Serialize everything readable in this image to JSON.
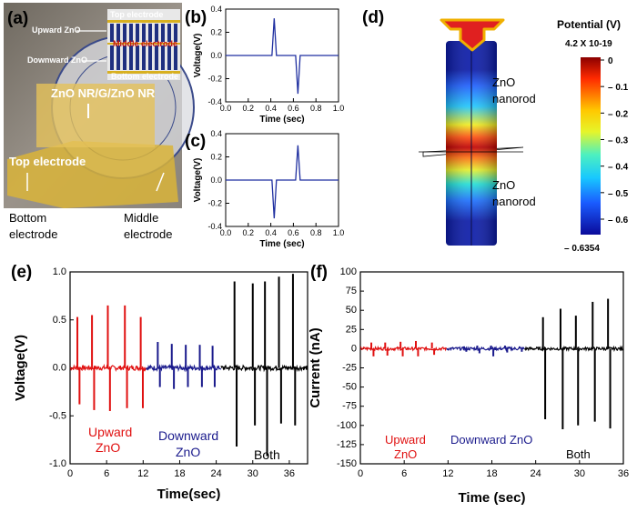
{
  "panels": {
    "a": {
      "label": "(a)",
      "photo_labels": {
        "top_electrode": "Top electrode",
        "upward_zno": "Upward ZnO",
        "middle_electrode": "Middle electrode",
        "downward_zno": "Downward ZnO",
        "bottom_electrode": "Bottom electrode",
        "device": "ZnO NR/G/ZnO NR",
        "top_electrode_tape": "Top electrode"
      },
      "captions": {
        "bottom_l1": "Bottom",
        "bottom_l2": "electrode",
        "middle_l1": "Middle",
        "middle_l2": "electrode"
      },
      "seal_text": "PUSAN NATIONAL UNIVERSITY"
    },
    "b": {
      "label": "(b)"
    },
    "c": {
      "label": "(c)"
    },
    "d": {
      "label": "(d)",
      "colorbar_title": "Potential (V)",
      "colorbar_top": "4.2 X 10-19",
      "colorbar_bottom": "– 0.6354",
      "colorbar_ticks": [
        "0",
        "– 0.1",
        "– 0.2",
        "– 0.3",
        "– 0.4",
        "– 0.5",
        "– 0.6"
      ],
      "rod_top_l1": "ZnO",
      "rod_top_l2": "nanorod",
      "rod_bot_l1": "ZnO",
      "rod_bot_l2": "nanorod"
    },
    "e": {
      "label": "(e)",
      "legend": {
        "upward_l1": "Upward",
        "upward_l2": "ZnO",
        "downward_l1": "Downward",
        "downward_l2": "ZnO",
        "both": "Both"
      }
    },
    "f": {
      "label": "(f)",
      "legend": {
        "upward_l1": "Upward",
        "upward_l2": "ZnO",
        "downward": "Downward ZnO",
        "both": "Both"
      }
    }
  },
  "colors": {
    "upward": "#e01010",
    "downward": "#1a1a8c",
    "both": "#000000",
    "trace": "#1f2fa0"
  },
  "chart_data": [
    {
      "id": "b",
      "type": "line",
      "xlabel": "Time (sec)",
      "ylabel": "Voltage(V)",
      "xlim": [
        0,
        1.0
      ],
      "ylim": [
        -0.4,
        0.4
      ],
      "xticks": [
        "0.0",
        "0.2",
        "0.4",
        "0.6",
        "0.8",
        "1.0"
      ],
      "yticks": [
        "-0.4",
        "-0.2",
        "0.0",
        "0.2",
        "0.4"
      ],
      "xtick_values": [
        0,
        0.2,
        0.4,
        0.6,
        0.8,
        1.0
      ],
      "ytick_values": [
        -0.4,
        -0.2,
        0,
        0.2,
        0.4
      ],
      "series": [
        {
          "name": "trace",
          "x": [
            0,
            0.41,
            0.43,
            0.45,
            0.62,
            0.64,
            0.66,
            1.0
          ],
          "y": [
            0.0,
            0.0,
            0.32,
            0.0,
            0.0,
            -0.33,
            0.0,
            0.0
          ]
        }
      ]
    },
    {
      "id": "c",
      "type": "line",
      "xlabel": "Time (sec)",
      "ylabel": "Voltage(V)",
      "xlim": [
        0,
        1.0
      ],
      "ylim": [
        -0.4,
        0.4
      ],
      "xticks": [
        "0.0",
        "0.2",
        "0.4",
        "0.6",
        "0.8",
        "1.0"
      ],
      "yticks": [
        "-0.4",
        "-0.2",
        "0.0",
        "0.2",
        "0.4"
      ],
      "xtick_values": [
        0,
        0.2,
        0.4,
        0.6,
        0.8,
        1.0
      ],
      "ytick_values": [
        -0.4,
        -0.2,
        0,
        0.2,
        0.4
      ],
      "series": [
        {
          "name": "trace",
          "x": [
            0,
            0.41,
            0.43,
            0.45,
            0.62,
            0.64,
            0.66,
            1.0
          ],
          "y": [
            0.0,
            0.0,
            -0.33,
            0.0,
            0.0,
            0.3,
            0.0,
            0.0
          ]
        }
      ]
    },
    {
      "id": "e",
      "type": "line",
      "xlabel": "Time(sec)",
      "ylabel": "Voltage(V)",
      "xlim": [
        0,
        39
      ],
      "ylim": [
        -1.0,
        1.0
      ],
      "xticks": [
        "0",
        "6",
        "12",
        "18",
        "24",
        "30",
        "36"
      ],
      "yticks": [
        "-1.0",
        "-0.5",
        "0.0",
        "0.5",
        "1.0"
      ],
      "xtick_values": [
        0,
        6,
        12,
        18,
        24,
        30,
        36
      ],
      "ytick_values": [
        -1.0,
        -0.5,
        0,
        0.5,
        1.0
      ],
      "series": [
        {
          "name": "Upward ZnO",
          "x_range": [
            0,
            12.5
          ],
          "peaks": [
            {
              "x": 1.2,
              "up": 0.53,
              "down": -0.38
            },
            {
              "x": 3.6,
              "up": 0.55,
              "down": -0.44
            },
            {
              "x": 6.2,
              "up": 0.65,
              "down": -0.45
            },
            {
              "x": 9.0,
              "up": 0.65,
              "down": -0.42
            },
            {
              "x": 11.6,
              "up": 0.53,
              "down": -0.42
            }
          ]
        },
        {
          "name": "Downward ZnO",
          "x_range": [
            12.5,
            24.8
          ],
          "peaks": [
            {
              "x": 14.4,
              "up": 0.27,
              "down": -0.2
            },
            {
              "x": 16.7,
              "up": 0.25,
              "down": -0.22
            },
            {
              "x": 19.0,
              "up": 0.24,
              "down": -0.2
            },
            {
              "x": 21.3,
              "up": 0.24,
              "down": -0.2
            },
            {
              "x": 23.4,
              "up": 0.23,
              "down": -0.2
            }
          ]
        },
        {
          "name": "Both",
          "x_range": [
            24.8,
            39
          ],
          "peaks": [
            {
              "x": 27.0,
              "up": 0.9,
              "down": -0.82
            },
            {
              "x": 30.0,
              "up": 0.88,
              "down": -0.6
            },
            {
              "x": 32.0,
              "up": 0.9,
              "down": -0.92
            },
            {
              "x": 34.3,
              "up": 0.95,
              "down": -0.58
            },
            {
              "x": 36.6,
              "up": 0.98,
              "down": -0.6
            }
          ]
        }
      ]
    },
    {
      "id": "f",
      "type": "line",
      "xlabel": "Time (sec)",
      "ylabel": "Current (nA)",
      "xlim": [
        0,
        36
      ],
      "ylim": [
        -150,
        100
      ],
      "xticks": [
        "0",
        "6",
        "12",
        "18",
        "24",
        "30",
        "36"
      ],
      "yticks": [
        "-150",
        "-125",
        "-100",
        "-75",
        "-50",
        "-25",
        "0",
        "25",
        "50",
        "75",
        "100"
      ],
      "xtick_values": [
        0,
        6,
        12,
        18,
        24,
        30,
        36
      ],
      "ytick_values": [
        -150,
        -125,
        -100,
        -75,
        -50,
        -25,
        0,
        25,
        50,
        75,
        100
      ],
      "series": [
        {
          "name": "Upward ZnO",
          "x_range": [
            0,
            11.8
          ],
          "peaks": [
            {
              "x": 1.5,
              "up": 8,
              "down": -10
            },
            {
              "x": 3.4,
              "up": 8,
              "down": -9
            },
            {
              "x": 5.5,
              "up": 9,
              "down": -10
            },
            {
              "x": 7.6,
              "up": 10,
              "down": -10
            },
            {
              "x": 9.8,
              "up": 8,
              "down": -8
            }
          ]
        },
        {
          "name": "Downward ZnO",
          "x_range": [
            11.8,
            22.5
          ],
          "peaks": [
            {
              "x": 14.2,
              "up": 3,
              "down": -4
            },
            {
              "x": 16.0,
              "up": 4,
              "down": -6
            },
            {
              "x": 17.9,
              "up": 4,
              "down": -10
            },
            {
              "x": 19.8,
              "up": 4,
              "down": -5
            },
            {
              "x": 21.8,
              "up": 3,
              "down": -4
            }
          ]
        },
        {
          "name": "Both",
          "x_range": [
            22.5,
            36
          ],
          "peaks": [
            {
              "x": 25.0,
              "up": 41,
              "down": -92
            },
            {
              "x": 27.4,
              "up": 52,
              "down": -105
            },
            {
              "x": 29.5,
              "up": 43,
              "down": -100
            },
            {
              "x": 31.8,
              "up": 61,
              "down": -95
            },
            {
              "x": 33.9,
              "up": 65,
              "down": -104
            }
          ]
        }
      ]
    }
  ]
}
